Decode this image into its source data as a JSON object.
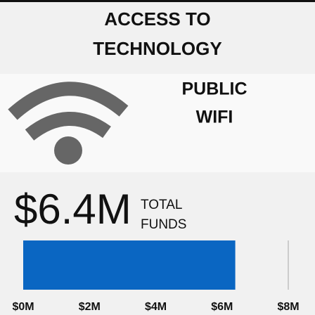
{
  "chart_data": {
    "type": "bar",
    "title": [
      "ACCESS TO",
      "TECHNOLOGY"
    ],
    "subtitle": [
      "PUBLIC",
      "WIFI"
    ],
    "total_label": [
      "TOTAL",
      "FUNDS"
    ],
    "categories": [
      null
    ],
    "values": [
      6.4
    ],
    "value_labels": [
      "$6.4M"
    ],
    "color": "#0a66c2",
    "orientation": "horizontal",
    "xlim": [
      0,
      8
    ],
    "xticks": [
      {
        "value": 0,
        "label": "$0M"
      },
      {
        "value": 2,
        "label": "$2M"
      },
      {
        "value": 4,
        "label": "$4M"
      },
      {
        "value": 6,
        "label": "$6M"
      },
      {
        "value": 8,
        "label": "$8M"
      }
    ]
  }
}
